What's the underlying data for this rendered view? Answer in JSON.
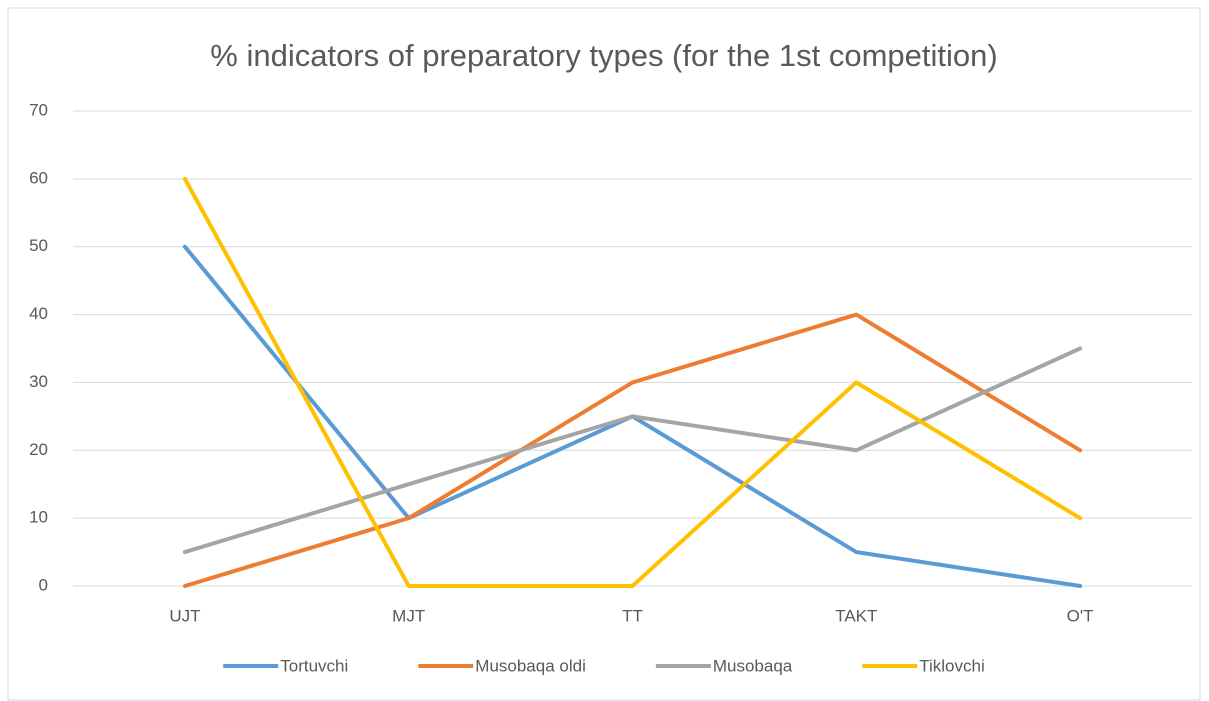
{
  "chart_data": {
    "type": "line",
    "title": "% indicators of preparatory types (for the 1st competition)",
    "categories": [
      "UJT",
      "MJT",
      "TT",
      "TAKT",
      "O'T"
    ],
    "series": [
      {
        "name": "Tortuvchi",
        "color": "#5b9bd5",
        "values": [
          50,
          10,
          25,
          5,
          0
        ]
      },
      {
        "name": "Musobaqa oldi",
        "color": "#ed7d31",
        "values": [
          0,
          10,
          30,
          40,
          20
        ]
      },
      {
        "name": "Musobaqa",
        "color": "#a5a5a5",
        "values": [
          5,
          15,
          25,
          20,
          35
        ]
      },
      {
        "name": "Tiklovchi",
        "color": "#ffc000",
        "values": [
          60,
          0,
          0,
          30,
          10
        ]
      }
    ],
    "ylim": [
      0,
      70
    ],
    "yticks": [
      0,
      10,
      20,
      30,
      40,
      50,
      60,
      70
    ],
    "grid": true,
    "legend": "bottom"
  }
}
